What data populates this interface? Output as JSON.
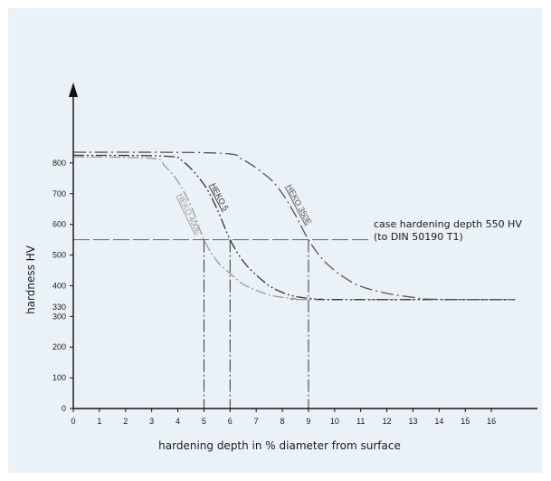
{
  "chart_data": {
    "type": "line",
    "xlabel": "hardening depth in % diameter from surface",
    "ylabel": "hardness HV",
    "xlim": [
      0,
      17
    ],
    "ylim": [
      0,
      900
    ],
    "x_ticks": [
      "0",
      "1",
      "2",
      "3",
      "4",
      "5",
      "6",
      "7",
      "8",
      "9",
      "10",
      "11",
      "12",
      "13",
      "14",
      "15",
      "16"
    ],
    "y_ticks": [
      "0",
      "100",
      "200",
      "300",
      "400",
      "500",
      "600",
      "700",
      "800"
    ],
    "extra_y_tick": {
      "value": 330,
      "label": "330"
    },
    "grid": false,
    "reference_line": {
      "y": 550,
      "label_line1": "case hardening depth 550 HV",
      "label_line2": "(to DIN 50190 T1)"
    },
    "depth_markers": [
      5,
      6,
      9
    ],
    "series": [
      {
        "name": "HEKO 400E",
        "color": "#9a9a9a",
        "x": [
          0,
          3.0,
          3.5,
          4.0,
          4.5,
          5.0,
          5.5,
          6.0,
          6.5,
          7.0,
          7.5,
          8.0,
          8.5,
          9.0,
          16.9
        ],
        "y": [
          820,
          815,
          790,
          740,
          660,
          550,
          480,
          440,
          405,
          385,
          370,
          362,
          358,
          355,
          355
        ]
      },
      {
        "name": "HEKO 5",
        "color": "#333333",
        "x": [
          0,
          3.5,
          4.2,
          5.0,
          5.5,
          6.0,
          6.5,
          7.0,
          7.5,
          8.0,
          8.5,
          9.0,
          9.5,
          10.0,
          16.9
        ],
        "y": [
          825,
          822,
          805,
          730,
          650,
          550,
          480,
          435,
          400,
          378,
          365,
          359,
          356,
          355,
          355
        ]
      },
      {
        "name": "HEKO 350E",
        "color": "#555555",
        "x": [
          0,
          5.5,
          6.5,
          7.5,
          8.0,
          8.5,
          9.0,
          9.5,
          10.0,
          10.5,
          11.0,
          12.0,
          13.0,
          13.8,
          16.9
        ],
        "y": [
          835,
          832,
          810,
          750,
          700,
          630,
          550,
          490,
          450,
          420,
          398,
          375,
          362,
          356,
          355
        ]
      }
    ]
  }
}
